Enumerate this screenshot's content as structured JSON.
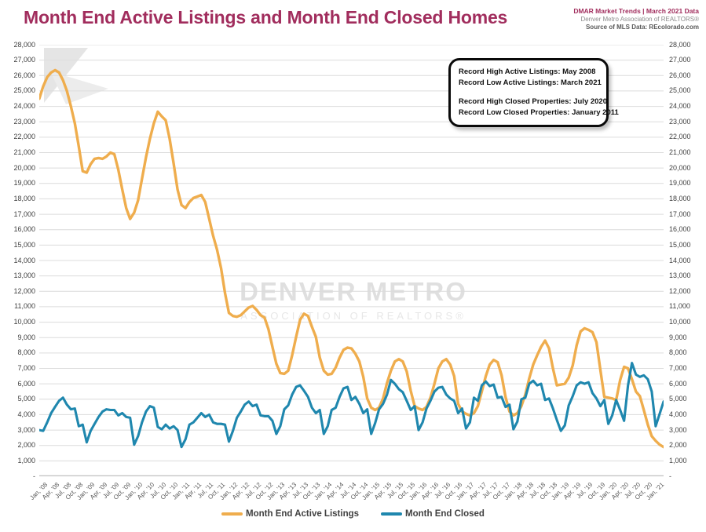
{
  "header": {
    "title": "Month End Active Listings and Month End Closed Homes",
    "meta_line1": "DMAR Market Trends | March 2021 Data",
    "meta_line2": "Denver Metro Association of REALTORS®",
    "meta_line3": "Source of MLS Data: REcolorado.com"
  },
  "annotation_box": {
    "lines": [
      "Record High Active Listings: May 2008",
      "Record Low Active Listings: March 2021",
      "",
      "Record High Closed Properties: July 2020",
      "Record Low Closed Properties: January 2011"
    ]
  },
  "watermark": {
    "logo": "denver-metro-logo",
    "line1": "DENVER METRO",
    "line2": "ASSOCIATION OF REALTORS®"
  },
  "colors": {
    "title": "#A12D5D",
    "active_line": "#EFAD4D",
    "closed_line": "#1F87AE",
    "gridline": "#DCDCDC",
    "axis_line": "#C0C0C0",
    "axis_text": "#404040"
  },
  "chart_data": {
    "type": "line",
    "title": "Month End Active Listings and Month End Closed Homes",
    "frequency": "monthly",
    "x_start": "Jan 2008",
    "x_end": "Mar 2021",
    "ylim": [
      0,
      28000
    ],
    "grid_step": 1000,
    "grid": true,
    "legend_position": "bottom",
    "x_tick_labels": [
      "Jan, '08",
      "Apr, '08",
      "Jul, '08",
      "Oct, '08",
      "Jan, '09",
      "Apr, '09",
      "Jul, '09",
      "Oct, '09",
      "Jan, '10",
      "Apr, '10",
      "Jul, '10",
      "Oct, '10",
      "Jan, '11",
      "Apr, '11",
      "Jul, '11",
      "Oct, '11",
      "Jan, '12",
      "Apr, '12",
      "Jul, '12",
      "Oct, '12",
      "Jan, '13",
      "Apr, '13",
      "Jul, '13",
      "Oct, '13",
      "Jan, '14",
      "Apr, '14",
      "Jul, '14",
      "Oct, '14",
      "Jan, '15",
      "Apr, '15",
      "Jul, '15",
      "Oct, '15",
      "Jan, '16",
      "Apr, '16",
      "Jul, '16",
      "Oct, '16",
      "Jan, '17",
      "Apr, '17",
      "Jul, '17",
      "Oct, '17",
      "Jan, '18",
      "Apr, '18",
      "Jul, '18",
      "Oct, '18",
      "Jan, '19",
      "Apr, '19",
      "Jul, '19",
      "Oct, '19",
      "Jan, '20",
      "Apr, '20",
      "Jul, '20",
      "Oct, '20",
      "Jan, '21"
    ],
    "y_tick_labels": [
      "28,000",
      "27,000",
      "26,000",
      "25,000",
      "24,000",
      "23,000",
      "22,000",
      "21,000",
      "20,000",
      "19,000",
      "18,000",
      "17,000",
      "16,000",
      "15,000",
      "14,000",
      "13,000",
      "12,000",
      "11,000",
      "10,000",
      "9,000",
      "8,000",
      "7,000",
      "6,000",
      "5,000",
      "4,000",
      "3,000",
      "2,000",
      "1,000",
      "-"
    ],
    "series": [
      {
        "name": "Month End Active Listings",
        "color": "#EFAD4D",
        "values": [
          24500,
          25300,
          25900,
          26200,
          26350,
          26200,
          25700,
          25000,
          24000,
          22900,
          21400,
          19800,
          19700,
          20250,
          20600,
          20650,
          20600,
          20750,
          21000,
          20900,
          19900,
          18600,
          17400,
          16700,
          17100,
          17900,
          19300,
          20700,
          21900,
          22900,
          23650,
          23350,
          23100,
          21900,
          20300,
          18600,
          17600,
          17400,
          17800,
          18050,
          18150,
          18250,
          17800,
          16700,
          15600,
          14700,
          13500,
          11900,
          10600,
          10400,
          10350,
          10450,
          10700,
          10950,
          11050,
          10800,
          10450,
          10300,
          9550,
          8400,
          7300,
          6700,
          6650,
          6850,
          7850,
          9050,
          10150,
          10550,
          10400,
          9700,
          9050,
          7700,
          6850,
          6600,
          6650,
          7050,
          7700,
          8200,
          8350,
          8300,
          7950,
          7450,
          6450,
          5050,
          4450,
          4300,
          4450,
          5050,
          6050,
          6850,
          7450,
          7600,
          7450,
          6800,
          5550,
          4550,
          4400,
          4300,
          4500,
          5100,
          6000,
          7000,
          7450,
          7600,
          7250,
          6500,
          4700,
          4200,
          4050,
          3950,
          4100,
          4550,
          5500,
          6500,
          7250,
          7550,
          7400,
          6550,
          5150,
          4200,
          3950,
          4100,
          4550,
          5300,
          6350,
          7250,
          7850,
          8400,
          8800,
          8300,
          7000,
          5900,
          5950,
          6000,
          6400,
          7200,
          8500,
          9400,
          9600,
          9500,
          9350,
          8700,
          6900,
          5150,
          5100,
          5050,
          4950,
          6250,
          7100,
          7000,
          6300,
          5500,
          5200,
          4300,
          3350,
          2600,
          2300,
          2050,
          1900
        ]
      },
      {
        "name": "Month End Closed",
        "color": "#1F87AE",
        "values": [
          3000,
          2950,
          3500,
          4100,
          4500,
          4900,
          5100,
          4650,
          4350,
          4400,
          3250,
          3350,
          2200,
          2950,
          3400,
          3850,
          4200,
          4350,
          4300,
          4300,
          3950,
          4100,
          3850,
          3800,
          2050,
          2600,
          3500,
          4200,
          4550,
          4450,
          3200,
          3050,
          3350,
          3100,
          3250,
          3000,
          1900,
          2400,
          3350,
          3500,
          3800,
          4100,
          3850,
          4000,
          3500,
          3400,
          3400,
          3350,
          2250,
          2950,
          3800,
          4200,
          4650,
          4850,
          4550,
          4650,
          3950,
          3900,
          3900,
          3600,
          2750,
          3250,
          4350,
          4600,
          5300,
          5800,
          5900,
          5550,
          5150,
          4450,
          4100,
          4300,
          2750,
          3250,
          4300,
          4450,
          5150,
          5700,
          5800,
          4950,
          5150,
          4700,
          4100,
          4350,
          2750,
          3450,
          4350,
          4700,
          5300,
          6250,
          6000,
          5650,
          5450,
          4900,
          4300,
          4550,
          3000,
          3500,
          4400,
          4900,
          5500,
          5750,
          5800,
          5300,
          5050,
          4900,
          4100,
          4400,
          3100,
          3500,
          5100,
          4900,
          5900,
          6150,
          5850,
          5950,
          5100,
          5150,
          4500,
          4650,
          3050,
          3550,
          5000,
          5100,
          6000,
          6200,
          5900,
          6000,
          4950,
          5050,
          4400,
          3650,
          2950,
          3300,
          4600,
          5200,
          5900,
          6100,
          6000,
          6100,
          5400,
          5050,
          4550,
          4950,
          3400,
          3950,
          4950,
          4300,
          3600,
          5900,
          7350,
          6600,
          6450,
          6550,
          6300,
          5500,
          3250,
          4050,
          4850
        ]
      }
    ]
  }
}
